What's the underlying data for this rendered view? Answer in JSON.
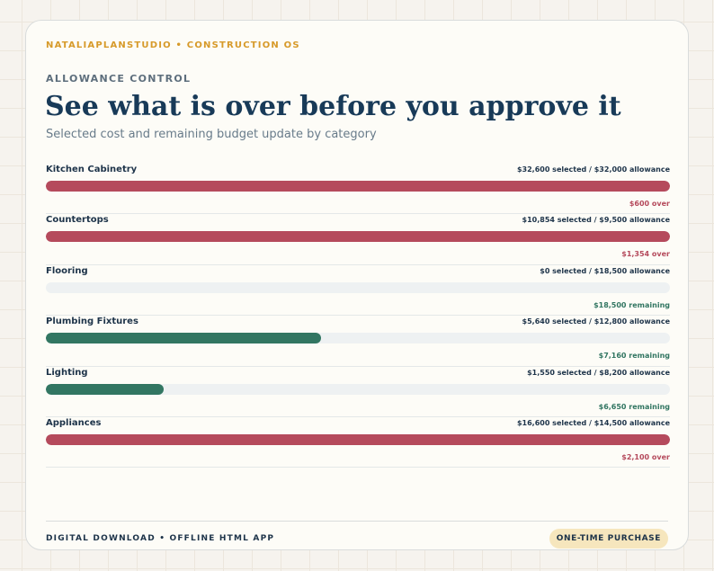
{
  "header": {
    "brand": "NATALIAPLANSTUDIO • CONSTRUCTION OS",
    "eyebrow": "ALLOWANCE CONTROL",
    "title": "See what is over before you approve it",
    "subtitle": "Selected cost and remaining budget update by category"
  },
  "colors": {
    "over": "#b54a5c",
    "under": "#327662",
    "brand": "#d79a2a",
    "title": "#183a58"
  },
  "categories": [
    {
      "name": "Kitchen Cabinetry",
      "meta": "$32,600 selected / $32,000 allowance",
      "selected": 32600,
      "allowance": 32000,
      "status": "$600 over",
      "state": "over"
    },
    {
      "name": "Countertops",
      "meta": "$10,854 selected / $9,500 allowance",
      "selected": 10854,
      "allowance": 9500,
      "status": "$1,354 over",
      "state": "over"
    },
    {
      "name": "Flooring",
      "meta": "$0 selected / $18,500 allowance",
      "selected": 0,
      "allowance": 18500,
      "status": "$18,500 remaining",
      "state": "under"
    },
    {
      "name": "Plumbing Fixtures",
      "meta": "$5,640 selected / $12,800 allowance",
      "selected": 5640,
      "allowance": 12800,
      "status": "$7,160 remaining",
      "state": "under"
    },
    {
      "name": "Lighting",
      "meta": "$1,550 selected / $8,200 allowance",
      "selected": 1550,
      "allowance": 8200,
      "status": "$6,650 remaining",
      "state": "under"
    },
    {
      "name": "Appliances",
      "meta": "$16,600 selected / $14,500 allowance",
      "selected": 16600,
      "allowance": 14500,
      "status": "$2,100 over",
      "state": "over"
    }
  ],
  "footer": {
    "left": "DIGITAL DOWNLOAD • OFFLINE HTML APP",
    "badge": "ONE-TIME PURCHASE"
  }
}
